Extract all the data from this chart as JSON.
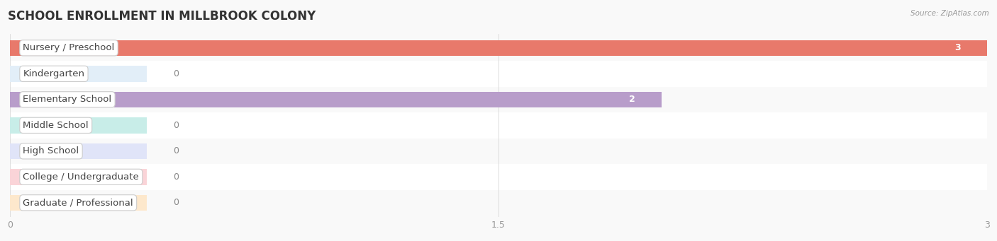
{
  "title": "SCHOOL ENROLLMENT IN MILLBROOK COLONY",
  "source": "Source: ZipAtlas.com",
  "categories": [
    "Nursery / Preschool",
    "Kindergarten",
    "Elementary School",
    "Middle School",
    "High School",
    "College / Undergraduate",
    "Graduate / Professional"
  ],
  "values": [
    3,
    0,
    2,
    0,
    0,
    0,
    0
  ],
  "bar_colors": [
    "#E8796B",
    "#A8C6E2",
    "#B89DCA",
    "#6FCBBA",
    "#B2BAE8",
    "#F29AA4",
    "#F7CA98"
  ],
  "bar_bg_colors": [
    "#FAD5D0",
    "#E2EEF8",
    "#E4D8F0",
    "#C8EDE8",
    "#E0E4F8",
    "#FAD4D8",
    "#FDE8CC"
  ],
  "zero_bar_width": 0.42,
  "xlim": [
    0,
    3
  ],
  "xticks": [
    0,
    1.5,
    3
  ],
  "title_fontsize": 12,
  "label_fontsize": 9.5,
  "value_fontsize": 9,
  "row_colors": [
    "#f9f9f9",
    "#ffffff"
  ],
  "grid_color": "#dddddd",
  "bg_color": "#f9f9f9"
}
